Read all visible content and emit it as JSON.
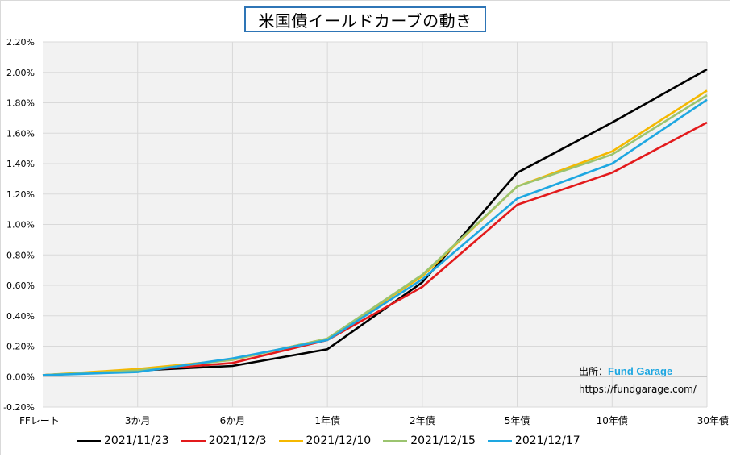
{
  "title": "米国債イールドカーブの動き",
  "source": {
    "label": "出所：",
    "brand": "Fund Garage",
    "url": "https://fundgarage.com/"
  },
  "chart_data": {
    "type": "line",
    "title": "米国債イールドカーブの動き",
    "categories": [
      "FFレート",
      "3か月",
      "6か月",
      "1年債",
      "2年債",
      "5年債",
      "10年債",
      "30年債"
    ],
    "y_ticks": [
      "2.20%",
      "2.00%",
      "1.80%",
      "1.60%",
      "1.40%",
      "1.20%",
      "1.00%",
      "0.80%",
      "0.60%",
      "0.40%",
      "0.20%",
      "0.00%",
      "-0.20%"
    ],
    "ylim": [
      -0.2,
      2.2
    ],
    "y_unit": "%",
    "grid": true,
    "legend_position": "bottom",
    "series": [
      {
        "name": "2021/11/23",
        "color": "#000000",
        "values": [
          0.01,
          0.04,
          0.07,
          0.18,
          0.62,
          1.34,
          1.67,
          2.02
        ]
      },
      {
        "name": "2021/12/3",
        "color": "#e31a1c",
        "values": [
          0.01,
          0.04,
          0.09,
          0.24,
          0.59,
          1.13,
          1.34,
          1.67
        ]
      },
      {
        "name": "2021/12/10",
        "color": "#f5b800",
        "values": [
          0.01,
          0.05,
          0.11,
          0.25,
          0.66,
          1.25,
          1.48,
          1.88
        ]
      },
      {
        "name": "2021/12/15",
        "color": "#9bc46f",
        "values": [
          0.01,
          0.04,
          0.11,
          0.25,
          0.67,
          1.25,
          1.46,
          1.85
        ]
      },
      {
        "name": "2021/12/17",
        "color": "#1ea7e1",
        "values": [
          0.01,
          0.03,
          0.12,
          0.24,
          0.64,
          1.17,
          1.4,
          1.82
        ]
      }
    ]
  }
}
